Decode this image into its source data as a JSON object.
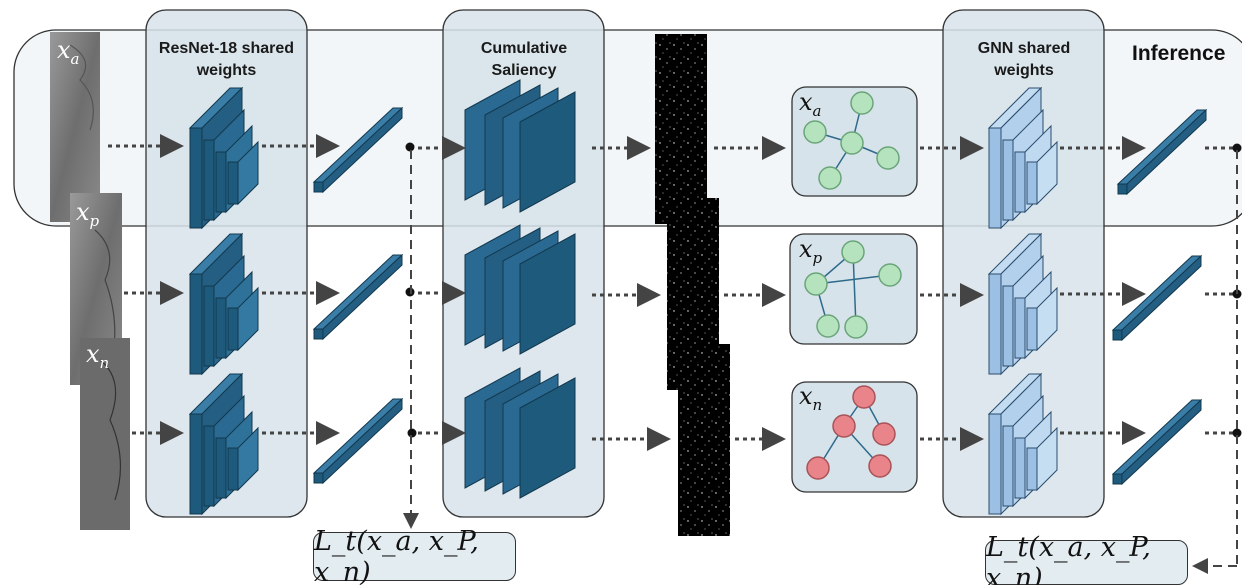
{
  "modules": {
    "resnet_title": "ResNet-18 shared weights",
    "saliency_title": "Cumulative Saliency",
    "gnn_title": "GNN shared weights",
    "inference_label": "Inference"
  },
  "inputs": {
    "anchor": "x",
    "anchor_sub": "a",
    "positive": "x",
    "positive_sub": "p",
    "negative": "x",
    "negative_sub": "n"
  },
  "graphs": {
    "anchor": "x",
    "anchor_sub": "a",
    "positive": "x",
    "positive_sub": "p",
    "negative": "x",
    "negative_sub": "n"
  },
  "loss": {
    "left": "L_t(x_a, x_P, x_n)",
    "right": "L_t(x_a, x_P, x_n)"
  },
  "colors": {
    "module_fill": "#d7e3ea",
    "cnn_dark": "#1e5a7b",
    "gnn_light": "#9cc0e4",
    "node_green": "#b5e3bd",
    "node_red": "#e8848a",
    "arrow": "#444444"
  }
}
